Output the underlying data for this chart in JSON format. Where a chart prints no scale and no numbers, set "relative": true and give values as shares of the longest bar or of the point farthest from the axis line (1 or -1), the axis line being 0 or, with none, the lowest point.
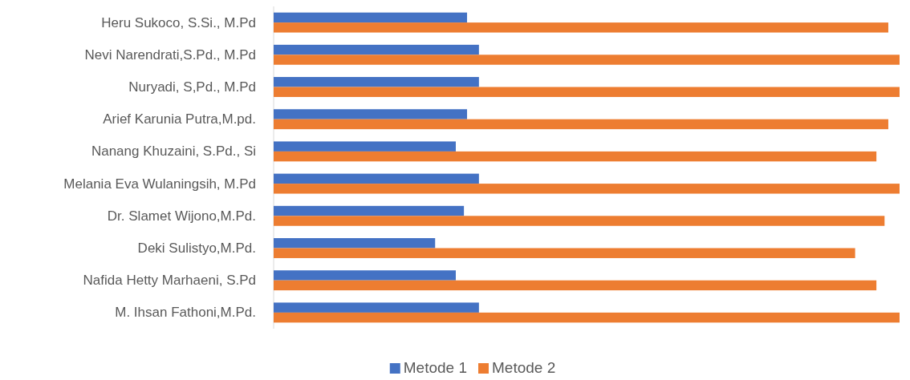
{
  "chart_data": {
    "type": "bar",
    "orientation": "horizontal",
    "relative": true,
    "legend": "bottom",
    "categories": [
      "Heru Sukoco, S.Si., M.Pd",
      "Nevi Narendrati,S.Pd., M.Pd",
      "Nuryadi, S,Pd., M.Pd",
      "Arief Karunia Putra,M.pd.",
      "Nanang Khuzaini, S.Pd., Si",
      "Melania Eva Wulaningsih, M.Pd",
      "Dr. Slamet Wijono,M.Pd.",
      "Deki Sulistyo,M.Pd.",
      "Nafida Hetty Marhaeni, S.Pd",
      "M. Ihsan Fathoni,M.Pd."
    ],
    "series": [
      {
        "name": "Metode 1",
        "color": "#4472c4",
        "values": [
          0.309,
          0.328,
          0.328,
          0.309,
          0.291,
          0.328,
          0.304,
          0.258,
          0.291,
          0.328
        ]
      },
      {
        "name": "Metode 2",
        "color": "#ed7d31",
        "values": [
          0.982,
          1,
          1,
          0.982,
          0.963,
          1,
          0.976,
          0.929,
          0.963,
          1
        ]
      }
    ]
  }
}
